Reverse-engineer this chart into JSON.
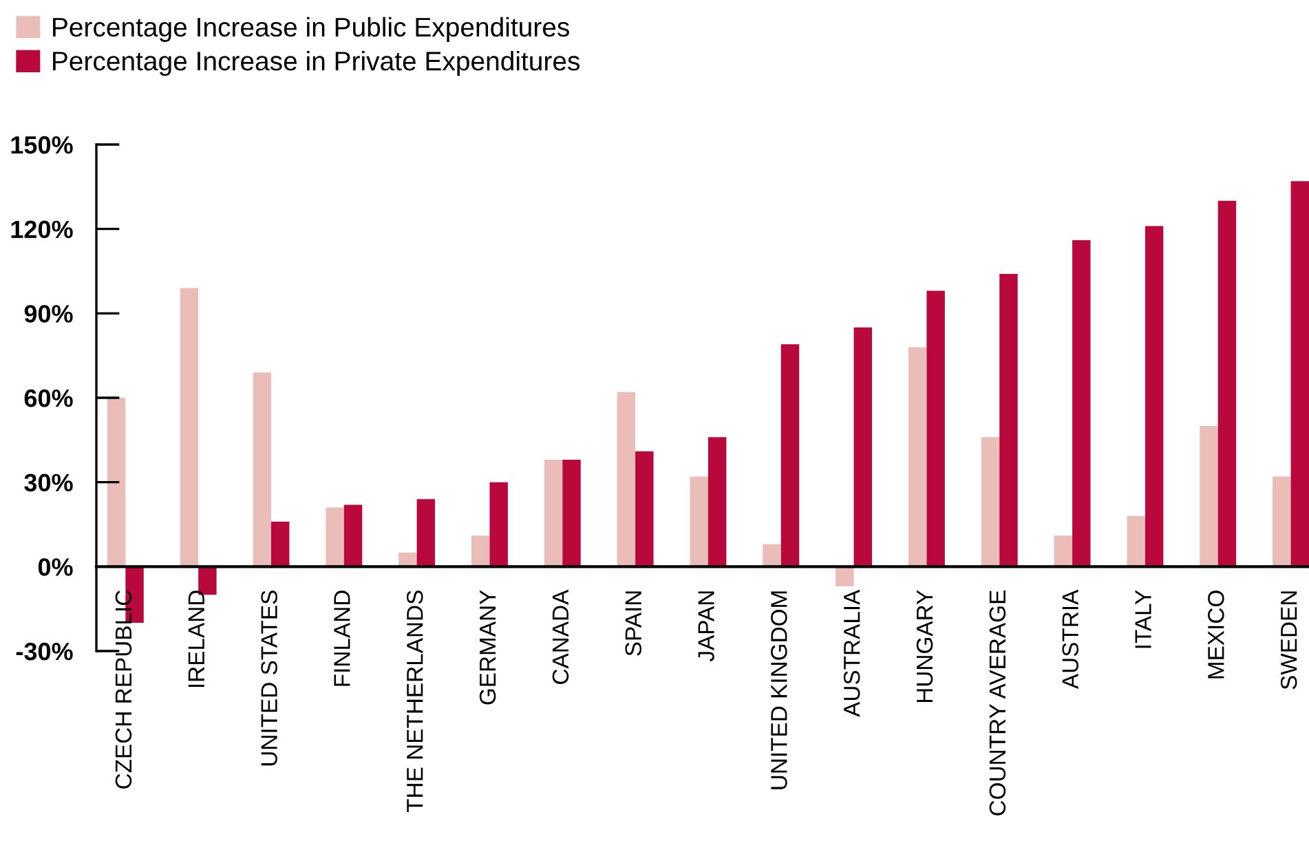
{
  "chart_data": {
    "type": "bar",
    "categories": [
      "CZECH REPUBLIC",
      "IRELAND",
      "UNITED STATES",
      "FINLAND",
      "THE NETHERLANDS",
      "GERMANY",
      "CANADA",
      "SPAIN",
      "JAPAN",
      "UNITED KINGDOM",
      "AUSTRALIA",
      "HUNGARY",
      "COUNTRY AVERAGE",
      "AUSTRIA",
      "ITALY",
      "MEXICO",
      "SWEDEN"
    ],
    "series": [
      {
        "name": "Percentage Increase in Public Expenditures",
        "color": "#ebbdb9",
        "values": [
          60,
          99,
          69,
          21,
          5,
          11,
          38,
          62,
          32,
          8,
          -7,
          78,
          46,
          11,
          18,
          50,
          32
        ]
      },
      {
        "name": "Percentage Increase in Private Expenditures",
        "color": "#b8083c",
        "values": [
          -20,
          -10,
          16,
          22,
          24,
          30,
          38,
          41,
          46,
          79,
          85,
          98,
          104,
          116,
          121,
          130,
          137
        ]
      }
    ],
    "ylim": [
      -30,
      150
    ],
    "yticks": [
      {
        "value": -30,
        "label": "-30%"
      },
      {
        "value": 0,
        "label": "0%"
      },
      {
        "value": 30,
        "label": "30%"
      },
      {
        "value": 60,
        "label": "60%"
      },
      {
        "value": 90,
        "label": "90%"
      },
      {
        "value": 120,
        "label": "120%"
      },
      {
        "value": 150,
        "label": "150%"
      }
    ],
    "grid": false,
    "legend": "top left"
  }
}
